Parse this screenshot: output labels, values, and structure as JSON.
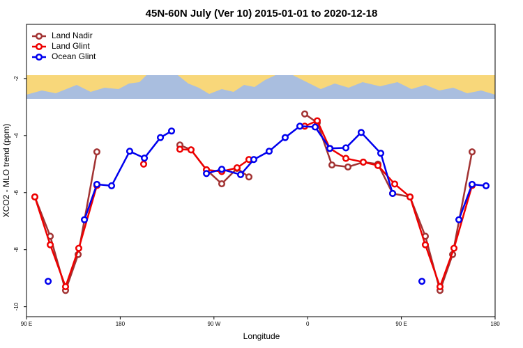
{
  "chart_data": {
    "type": "line",
    "title": "45N-60N July (Ver 10)   2015-01-01 to 2020-12-18",
    "xlabel": "Longitude",
    "ylabel": "XCO2 - MLO trend (ppm)",
    "xlim": [
      90,
      540
    ],
    "ylim": [
      -10.35,
      -0.1
    ],
    "xticks": [
      {
        "value": 90,
        "label": "90 E"
      },
      180,
      {
        "value": 270,
        "label": "90 W"
      },
      {
        "value": 360,
        "label": "0"
      },
      {
        "value": 450,
        "label": "90 E"
      },
      {
        "value": 540,
        "label": "180"
      }
    ],
    "yticks": [
      -10,
      -8,
      -6,
      -4,
      -2
    ],
    "legend": "top-left",
    "series": [
      {
        "name": "Land Nadir",
        "color": "#a23333",
        "x": [
          98.0,
          112.8,
          127.5,
          139.6,
          157.6,
          null,
          237.3,
          248.0,
          262.8,
          277.5,
          292.2,
          303.6,
          null,
          357.2,
          369.2,
          383.3,
          398.7,
          413.4,
          427.5,
          441.6,
          458.3,
          473.0,
          487.1,
          499.2,
          517.9
        ],
        "values": [
          -6.15,
          -7.53,
          -9.43,
          -8.17,
          -4.57,
          null,
          -4.33,
          -4.5,
          -5.2,
          -5.69,
          -5.15,
          -5.45,
          null,
          -3.24,
          -3.55,
          -5.03,
          -5.1,
          -4.93,
          -5.0,
          -6.03,
          -6.15,
          -7.53,
          -9.43,
          -8.17,
          -4.57
        ]
      },
      {
        "name": "Land Glint",
        "color": "#ee0000",
        "x": [
          98.0,
          112.8,
          127.5,
          140.2,
          157.6,
          null,
          202.5,
          null,
          237.3,
          248.0,
          262.8,
          277.5,
          292.2,
          303.6,
          null,
          357.2,
          369.2,
          381.3,
          396.7,
          413.4,
          427.5,
          443.6,
          458.3,
          473.0,
          487.1,
          500.5,
          517.9
        ],
        "values": [
          -6.15,
          -7.83,
          -9.3,
          -7.95,
          -5.75,
          null,
          -5.0,
          null,
          -4.48,
          -4.5,
          -5.2,
          -5.26,
          -5.13,
          -4.84,
          null,
          -3.67,
          -3.48,
          -4.45,
          -4.8,
          -4.93,
          -5.05,
          -5.7,
          -6.15,
          -7.83,
          -9.3,
          -7.95,
          -5.75
        ]
      },
      {
        "name": "Ocean Glint",
        "color": "#0000ee",
        "x": [
          110.8,
          null,
          145.6,
          157.6,
          171.7,
          189.1,
          203.2,
          218.6,
          229.3,
          null,
          262.8,
          277.5,
          295.6,
          308.3,
          323.0,
          338.4,
          352.5,
          367.2,
          381.3,
          396.7,
          411.4,
          430.2,
          441.6,
          null,
          469.7,
          null,
          505.2,
          517.9,
          531.3
        ],
        "values": [
          -9.11,
          null,
          -6.95,
          -5.71,
          -5.76,
          -4.55,
          -4.79,
          -4.07,
          -3.84,
          null,
          -5.33,
          -5.18,
          -5.37,
          -4.84,
          -4.55,
          -4.07,
          -3.67,
          -3.7,
          -4.45,
          -4.43,
          -3.89,
          -4.62,
          -6.03,
          null,
          -9.11,
          null,
          -6.95,
          -5.71,
          -5.76
        ]
      }
    ]
  }
}
